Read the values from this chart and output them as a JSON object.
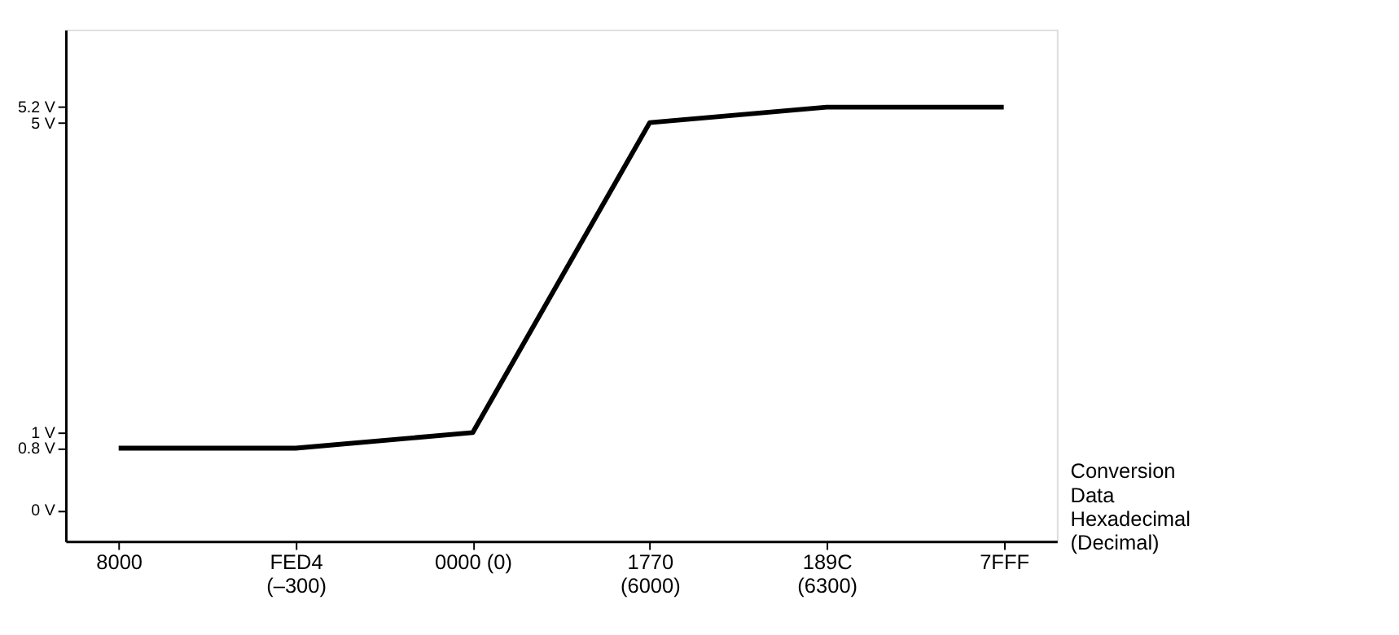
{
  "chart_data": {
    "type": "line",
    "xlabel": "Conversion Data Hexadecimal (Decimal)",
    "categories": [
      "8000",
      "FED4\n(–300)",
      "0000 (0)",
      "1770\n(6000)",
      "189C\n(6300)",
      "7FFF"
    ],
    "series": [
      {
        "color": "#000000",
        "values": [
          0.8,
          0.8,
          1,
          5,
          5.2,
          5.2
        ]
      }
    ],
    "ylim": [
      -0.4,
      6.2
    ],
    "yticks": [
      {
        "value": 0,
        "label": "0 V"
      },
      {
        "value": 0.8,
        "label": "0.8 V"
      },
      {
        "value": 1,
        "label": "1 V"
      },
      {
        "value": 5,
        "label": "5 V"
      },
      {
        "value": 5.2,
        "label": "5.2 V"
      }
    ],
    "grid": false,
    "marker": "none",
    "line_style": "solid"
  }
}
